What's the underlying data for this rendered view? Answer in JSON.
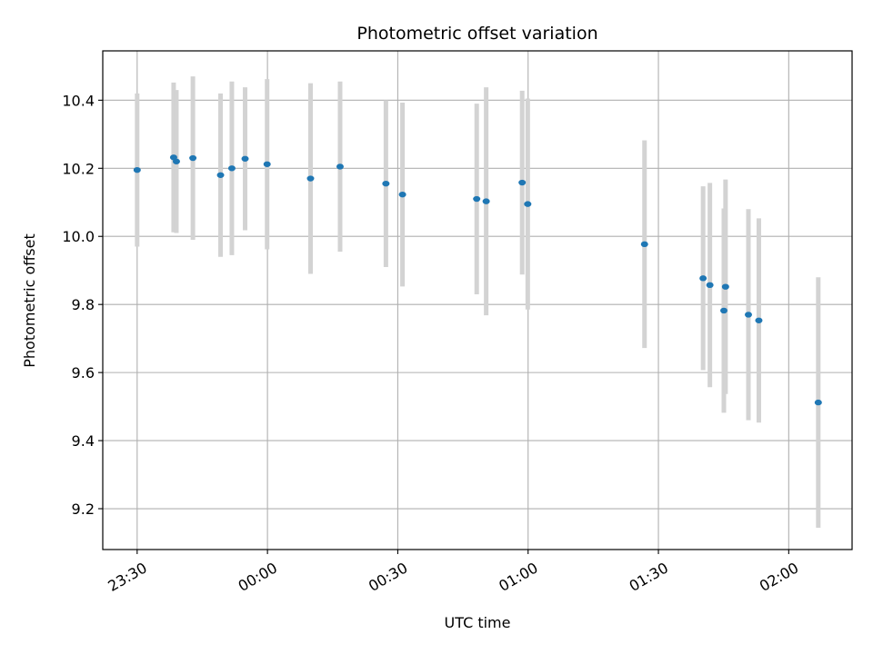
{
  "chart_data": {
    "type": "scatter",
    "title": "Photometric offset variation",
    "xlabel": "UTC time",
    "ylabel": "Photometric offset",
    "x_ticks": [
      "23:30",
      "00:00",
      "00:30",
      "01:00",
      "01:30",
      "02:00"
    ],
    "y_ticks": [
      "9.2",
      "9.4",
      "9.6",
      "9.8",
      "10.0",
      "10.2",
      "10.4"
    ],
    "xlim": [
      "23:22:05",
      "02:14:35"
    ],
    "ylim": [
      9.08,
      10.545
    ],
    "grid": true,
    "point_color": "#1f77b4",
    "errorbar_color": "#d3d3d3",
    "points": [
      {
        "x": "23:30:00",
        "y": 10.195,
        "yerr": 0.225
      },
      {
        "x": "23:38:24",
        "y": 10.232,
        "yerr": 0.22
      },
      {
        "x": "23:39:02",
        "y": 10.22,
        "yerr": 0.21
      },
      {
        "x": "23:42:50",
        "y": 10.23,
        "yerr": 0.24
      },
      {
        "x": "23:49:12",
        "y": 10.18,
        "yerr": 0.24
      },
      {
        "x": "23:51:48",
        "y": 10.2,
        "yerr": 0.255
      },
      {
        "x": "23:54:51",
        "y": 10.228,
        "yerr": 0.21
      },
      {
        "x": "23:59:55",
        "y": 10.212,
        "yerr": 0.25
      },
      {
        "x": "00:09:55",
        "y": 10.17,
        "yerr": 0.28
      },
      {
        "x": "00:16:43",
        "y": 10.205,
        "yerr": 0.25
      },
      {
        "x": "00:27:16",
        "y": 10.155,
        "yerr": 0.245
      },
      {
        "x": "00:31:05",
        "y": 10.123,
        "yerr": 0.27
      },
      {
        "x": "00:48:10",
        "y": 10.11,
        "yerr": 0.28
      },
      {
        "x": "00:50:21",
        "y": 10.103,
        "yerr": 0.335
      },
      {
        "x": "00:58:38",
        "y": 10.158,
        "yerr": 0.27
      },
      {
        "x": "00:59:55",
        "y": 10.095,
        "yerr": 0.31
      },
      {
        "x": "01:26:48",
        "y": 9.977,
        "yerr": 0.305
      },
      {
        "x": "01:40:17",
        "y": 9.877,
        "yerr": 0.27
      },
      {
        "x": "01:41:51",
        "y": 9.857,
        "yerr": 0.3
      },
      {
        "x": "01:45:04",
        "y": 9.782,
        "yerr": 0.3
      },
      {
        "x": "01:45:27",
        "y": 9.852,
        "yerr": 0.315
      },
      {
        "x": "01:50:43",
        "y": 9.77,
        "yerr": 0.31
      },
      {
        "x": "01:53:07",
        "y": 9.753,
        "yerr": 0.3
      },
      {
        "x": "02:06:48",
        "y": 9.512,
        "yerr": 0.368
      }
    ]
  }
}
